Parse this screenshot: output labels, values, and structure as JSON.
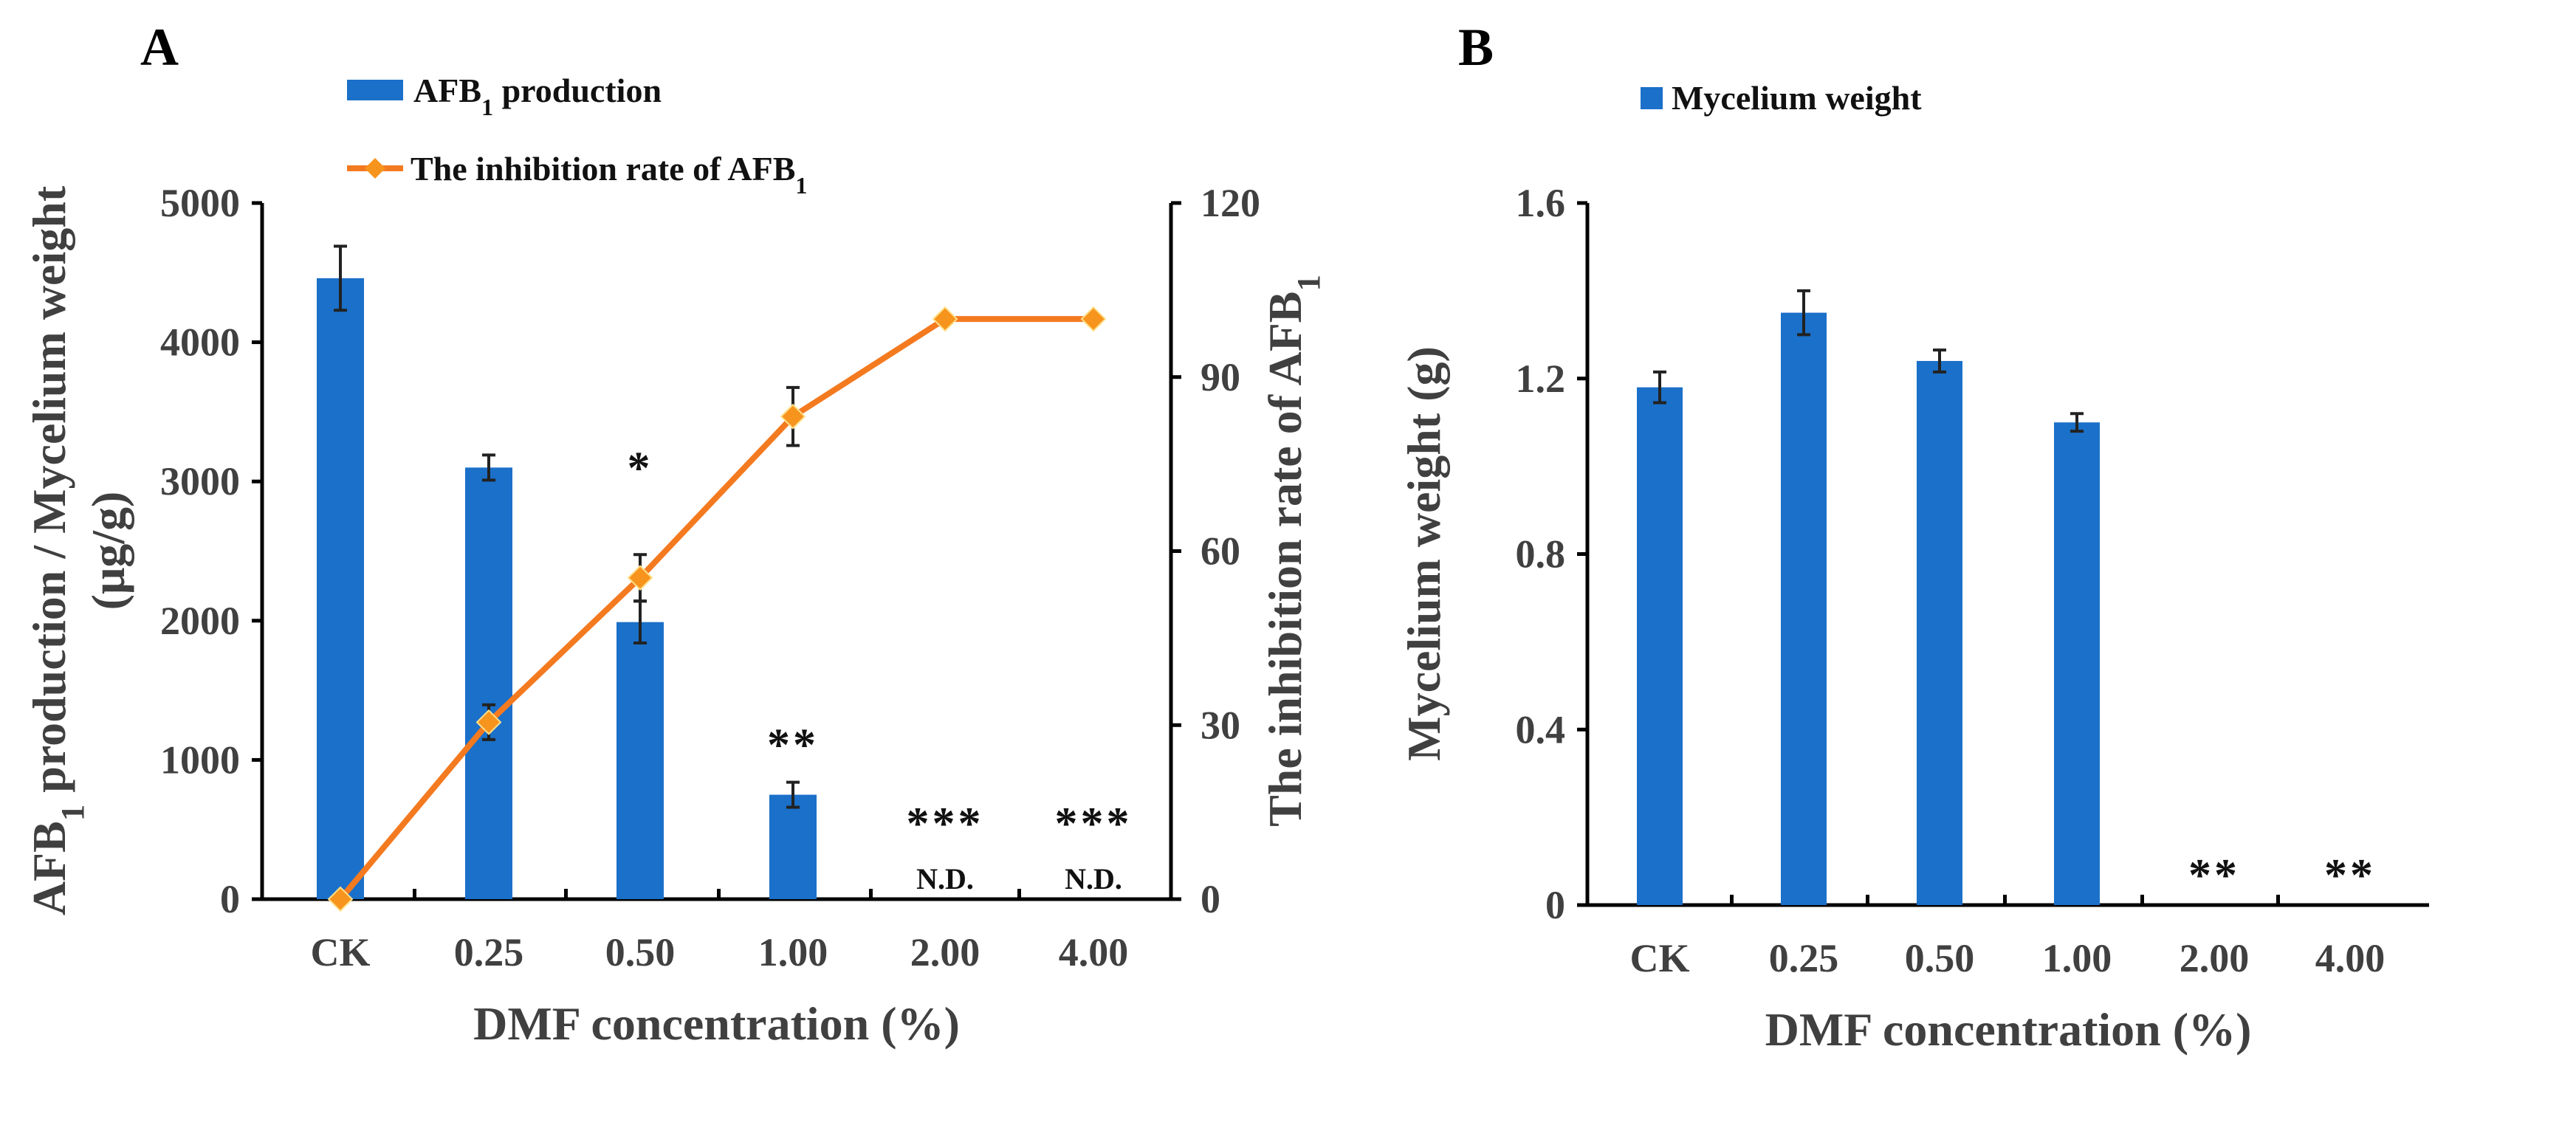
{
  "colors": {
    "bar": "#1b70c9",
    "line": "#f47a20",
    "marker": "#f7941d",
    "axis": "#000000",
    "text": "#404040"
  },
  "chart_data": [
    {
      "panel": "A",
      "type": "bar+line",
      "xlabel": "DMF concentration (%)",
      "ylabel": "AFB1 production / Mycelium weight",
      "ylabel_unit": "(μg/g)",
      "ylabel2": "The inhibition rate of AFB1",
      "categories": [
        "CK",
        "0.25",
        "0.50",
        "1.00",
        "2.00",
        "4.00"
      ],
      "ylim": [
        0,
        5000
      ],
      "yticks": [
        "0",
        "1000",
        "2000",
        "3000",
        "4000",
        "5000"
      ],
      "y2lim": [
        0,
        120
      ],
      "y2ticks": [
        "0",
        "30",
        "60",
        "90",
        "120"
      ],
      "series": [
        {
          "name": "AFB1 production",
          "type": "bar",
          "values": [
            4460,
            3100,
            1990,
            750,
            0,
            0
          ],
          "errors": [
            230,
            90,
            150,
            90,
            0,
            0
          ]
        },
        {
          "name": "The inhibition rate of AFB1",
          "type": "line",
          "axis": "right",
          "values": [
            0,
            30.5,
            55.4,
            83.2,
            100,
            100
          ],
          "errors": [
            0,
            3,
            4,
            5,
            0,
            0
          ]
        }
      ],
      "annotations": [
        {
          "category": "0.50",
          "text": "*"
        },
        {
          "category": "1.00",
          "text": "**"
        },
        {
          "category": "2.00",
          "text": "***",
          "note": "N.D."
        },
        {
          "category": "4.00",
          "text": "***",
          "note": "N.D."
        }
      ],
      "legend": [
        "AFB1 production",
        "The inhibition rate of AFB1"
      ],
      "legend_placement": "top"
    },
    {
      "panel": "B",
      "type": "bar",
      "xlabel": "DMF concentration (%)",
      "ylabel": "Mycelium weight (g)",
      "categories": [
        "CK",
        "0.25",
        "0.50",
        "1.00",
        "2.00",
        "4.00"
      ],
      "ylim": [
        0,
        1.6
      ],
      "yticks": [
        "0",
        "0.4",
        "0.8",
        "1.2",
        "1.6"
      ],
      "series": [
        {
          "name": "Mycelium weight",
          "values": [
            1.18,
            1.35,
            1.24,
            1.1,
            0,
            0
          ],
          "errors": [
            0.035,
            0.05,
            0.025,
            0.02,
            0,
            0
          ]
        }
      ],
      "annotations": [
        {
          "category": "2.00",
          "text": "**"
        },
        {
          "category": "4.00",
          "text": "**"
        }
      ],
      "legend": [
        "Mycelium weight"
      ],
      "legend_placement": "top"
    }
  ]
}
